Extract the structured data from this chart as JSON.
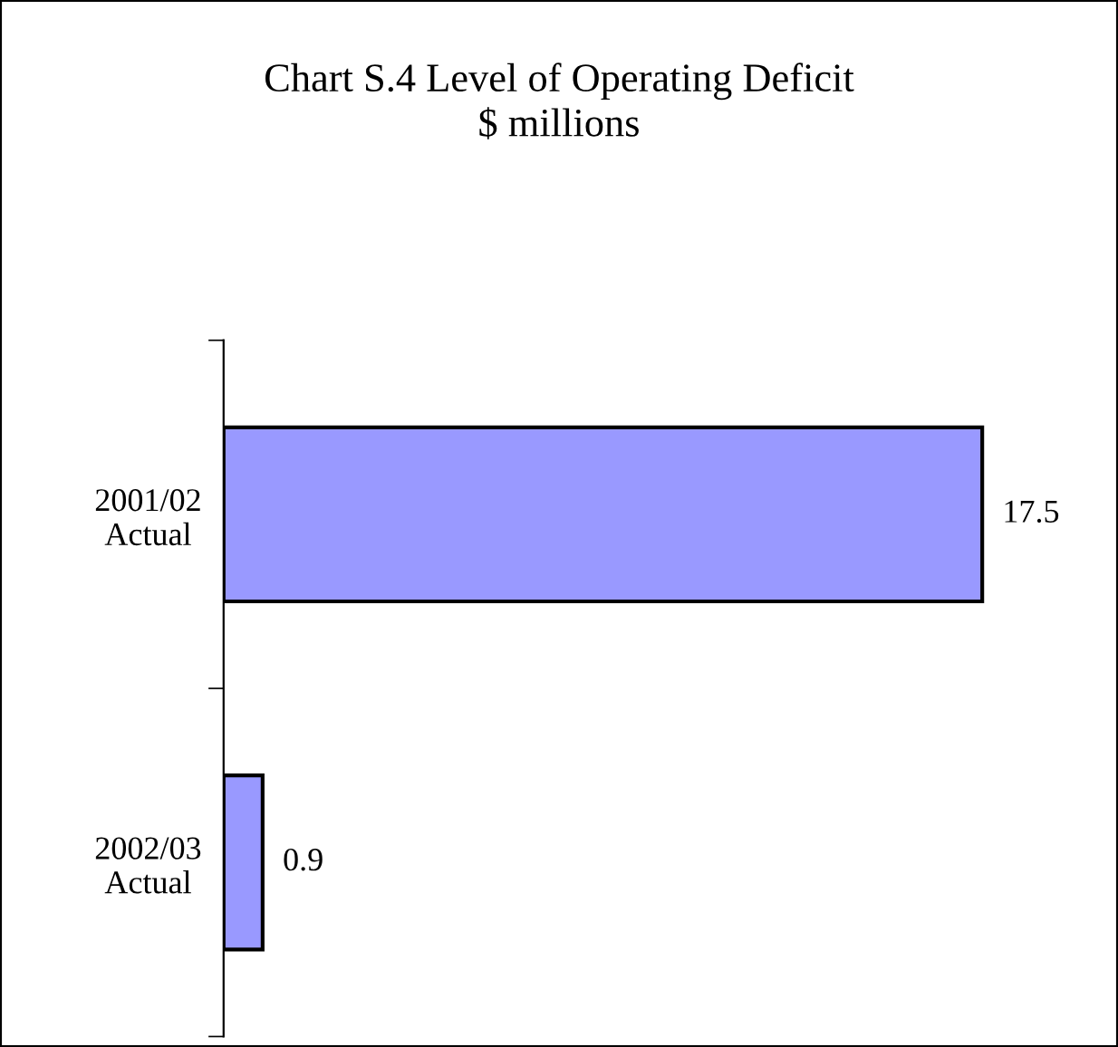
{
  "chart_data": {
    "type": "bar",
    "orientation": "horizontal",
    "title": "Chart S.4 Level of Operating Deficit\n$ millions",
    "categories": [
      "2001/02\nActual",
      "2002/03\nActual"
    ],
    "values": [
      17.5,
      0.9
    ],
    "color": "#9999ff",
    "data_labels": true,
    "tick_labels": "y",
    "grid": false,
    "legend": false
  }
}
